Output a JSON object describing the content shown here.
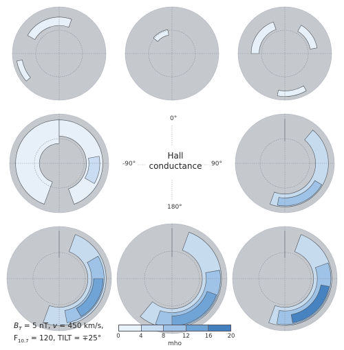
{
  "title_line1": "Hall",
  "title_line2": "conductance",
  "angle_labels": {
    "top": "0°",
    "left": "-90°",
    "right": "90°",
    "bottom": "180°"
  },
  "params": {
    "bt": "5 nT",
    "v": "450 km/s",
    "f107": "120",
    "tilt": "∓25°"
  },
  "colorbar": {
    "unit": "mho",
    "ticks": [
      "0",
      "4",
      "8",
      "12",
      "16",
      "20"
    ],
    "colors": [
      "#e9f2fb",
      "#c8dcf1",
      "#9dc2e6",
      "#6ea3d6",
      "#4480c0",
      "#1f5a9e"
    ]
  },
  "colors": {
    "background_disk": "#c5c9ce",
    "grid": "#8a8e94",
    "outline": "#444a52"
  }
}
